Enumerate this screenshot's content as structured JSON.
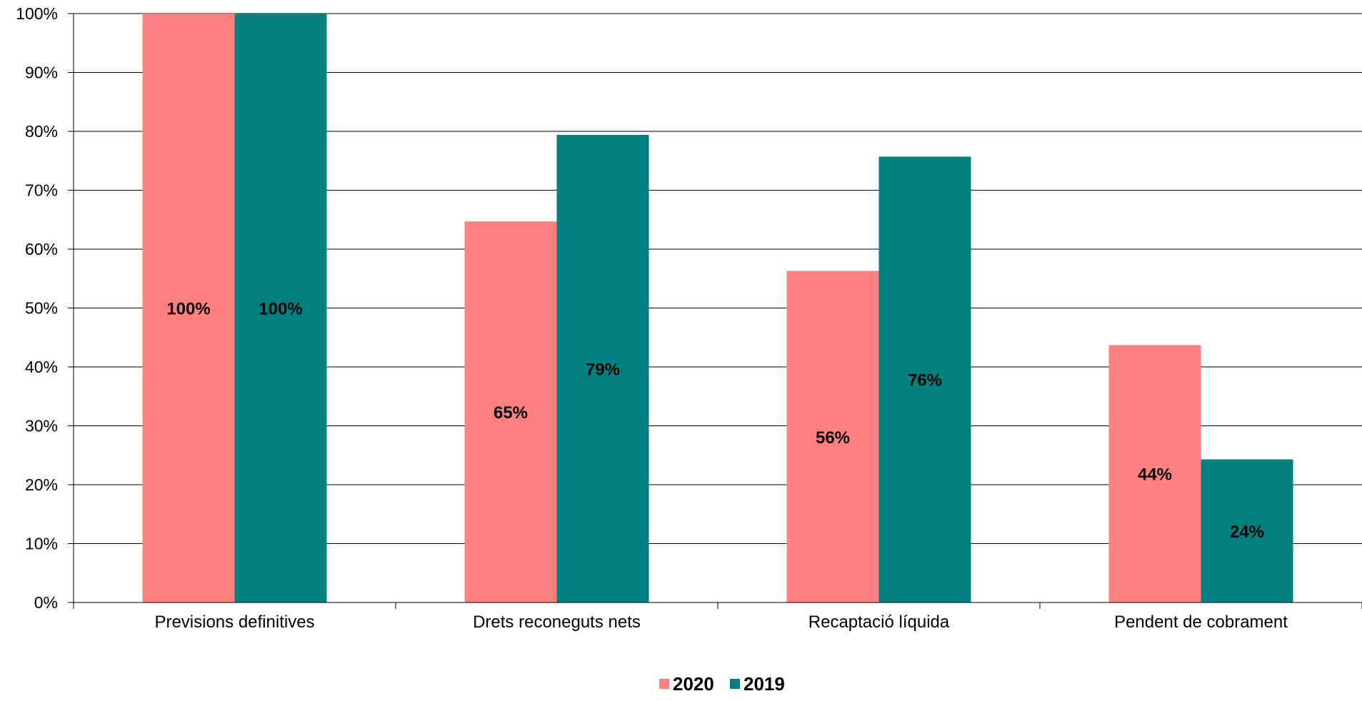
{
  "chart_data": {
    "type": "bar",
    "categories": [
      "Previsions definitives",
      "Drets reconeguts nets",
      "Recaptació líquida",
      "Pendent de cobrament"
    ],
    "series": [
      {
        "name": "2020",
        "color": "#FF8080",
        "values": [
          100,
          64.7,
          56.3,
          43.7
        ],
        "labels": [
          "100%",
          "65%",
          "56%",
          "44%"
        ]
      },
      {
        "name": "2019",
        "color": "#008080",
        "values": [
          100,
          79.4,
          75.7,
          24.3
        ],
        "labels": [
          "100%",
          "79%",
          "76%",
          "24%"
        ]
      }
    ],
    "ylim": [
      0,
      100
    ],
    "yticks": [
      0,
      10,
      20,
      30,
      40,
      50,
      60,
      70,
      80,
      90,
      100
    ],
    "ytick_labels": [
      "0%",
      "10%",
      "20%",
      "30%",
      "40%",
      "50%",
      "60%",
      "70%",
      "80%",
      "90%",
      "100%"
    ],
    "grid": true,
    "legend": "bottom-center",
    "title": "",
    "xlabel": "",
    "ylabel": ""
  }
}
